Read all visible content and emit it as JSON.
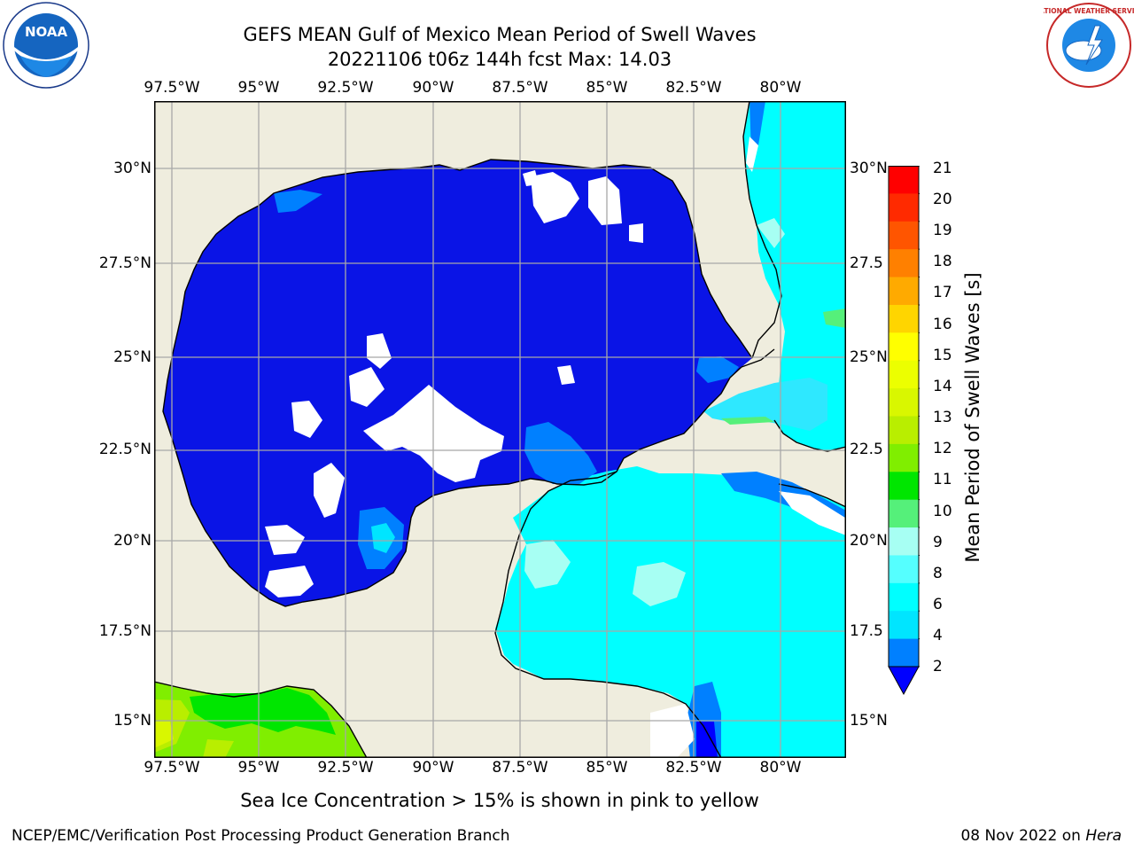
{
  "title": {
    "line1": "GEFS MEAN Gulf of Mexico Mean Period of Swell Waves",
    "line2": "20221106 t06z 144h fcst   Max: 14.03"
  },
  "logos": {
    "left": "NOAA",
    "right": "NATIONAL WEATHER SERVICE"
  },
  "map": {
    "lon_labels": [
      "97.5°W",
      "95°W",
      "92.5°W",
      "90°W",
      "87.5°W",
      "85°W",
      "82.5°W",
      "80°W"
    ],
    "lat_labels_left": [
      "30°N",
      "27.5°N",
      "25°N",
      "22.5°N",
      "20°N",
      "17.5°N",
      "15°N"
    ],
    "lat_labels_right": [
      "30°N",
      "27.5",
      "25°N",
      "22.5",
      "20°N",
      "17.5",
      "15°N"
    ],
    "colors": {
      "land": "#efedde",
      "ocean_low": "#0a14e6",
      "coast": "#000000",
      "grid": "#a8a8a8"
    }
  },
  "colorbar": {
    "title": "Mean Period of Swell Waves [s]",
    "ticks": [
      "21",
      "20",
      "19",
      "18",
      "17",
      "16",
      "15",
      "14",
      "13",
      "12",
      "11",
      "10",
      "9",
      "8",
      "6",
      "4",
      "2"
    ],
    "colors": [
      "#ff0000",
      "#ff2a00",
      "#ff5500",
      "#ff8000",
      "#ffaa00",
      "#ffd500",
      "#ffff00",
      "#ecff00",
      "#d9f700",
      "#b9ee00",
      "#80ee00",
      "#00e600",
      "#55f07a",
      "#a7fff3",
      "#55ffff",
      "#00ffff",
      "#00e5ff",
      "#0080ff",
      "#0000ff"
    ]
  },
  "note": "Sea Ice Concentration > 15% is shown in pink to yellow",
  "footer": {
    "left": "NCEP/EMC/Verification Post Processing Product Generation Branch",
    "right_date": "08 Nov 2022 on",
    "right_host": "Hera"
  }
}
